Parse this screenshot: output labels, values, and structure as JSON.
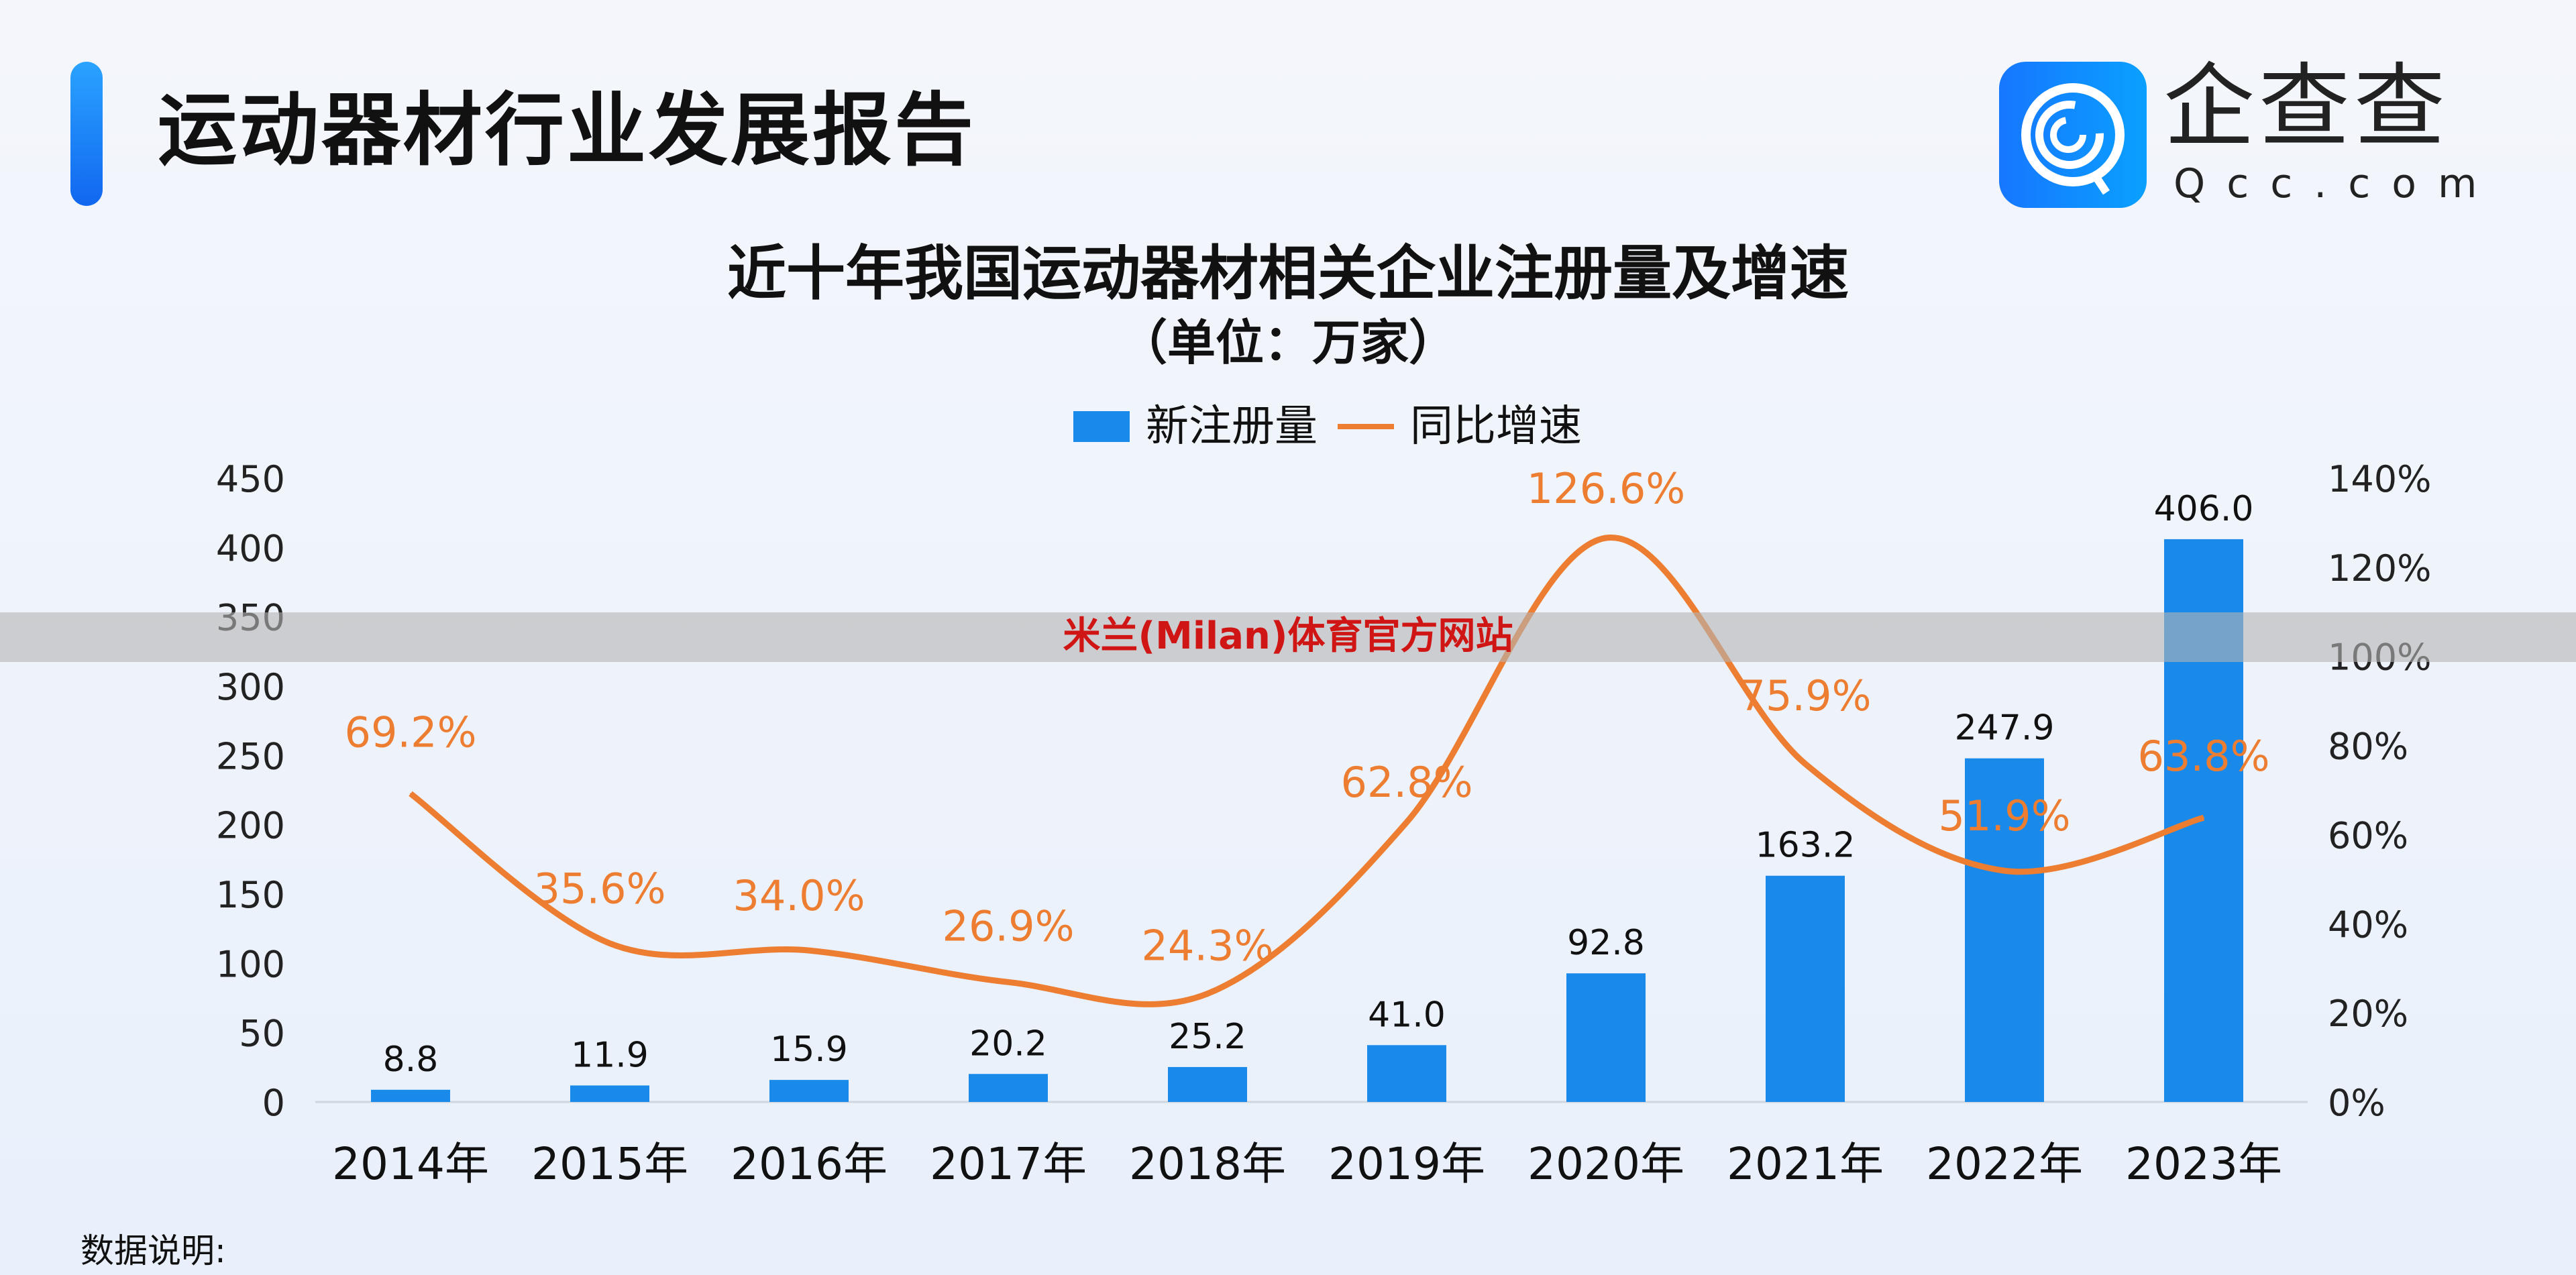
{
  "header": {
    "title": "运动器材行业发展报告"
  },
  "logo": {
    "name_cn": "企查查",
    "name_en": "Qcc.com"
  },
  "watermark": "米兰(Milan)体育官方网站",
  "footer": {
    "note": "数据说明:"
  },
  "chart_data": {
    "type": "bar+line",
    "title": "近十年我国运动器材相关企业注册量及增速",
    "subtitle": "（单位：万家）",
    "categories": [
      "2014年",
      "2015年",
      "2016年",
      "2017年",
      "2018年",
      "2019年",
      "2020年",
      "2021年",
      "2022年",
      "2023年"
    ],
    "series": [
      {
        "name": "新注册量",
        "type": "bar",
        "axis": "left",
        "color": "#1a8aea",
        "values": [
          8.8,
          11.9,
          15.9,
          20.2,
          25.2,
          41.0,
          92.8,
          163.2,
          247.9,
          406.0
        ],
        "labels": [
          "8.8",
          "11.9",
          "15.9",
          "20.2",
          "25.2",
          "41.0",
          "92.8",
          "163.2",
          "247.9",
          "406.0"
        ]
      },
      {
        "name": "同比增速",
        "type": "line",
        "axis": "right",
        "color": "#ed7d31",
        "values": [
          69.2,
          35.6,
          34.0,
          26.9,
          24.3,
          62.8,
          126.6,
          75.9,
          51.9,
          63.8
        ],
        "labels": [
          "69.2%",
          "35.6%",
          "34.0%",
          "26.9%",
          "24.3%",
          "62.8%",
          "126.6%",
          "75.9%",
          "51.9%",
          "63.8%"
        ]
      }
    ],
    "y_left": {
      "range": [
        0,
        450
      ],
      "ticks": [
        "0",
        "50",
        "100",
        "150",
        "200",
        "250",
        "300",
        "350",
        "400",
        "450"
      ]
    },
    "y_right": {
      "range": [
        0,
        140
      ],
      "ticks": [
        "0%",
        "20%",
        "40%",
        "60%",
        "80%",
        "100%",
        "120%",
        "140%"
      ]
    },
    "grid": false,
    "legend": "top-center"
  }
}
